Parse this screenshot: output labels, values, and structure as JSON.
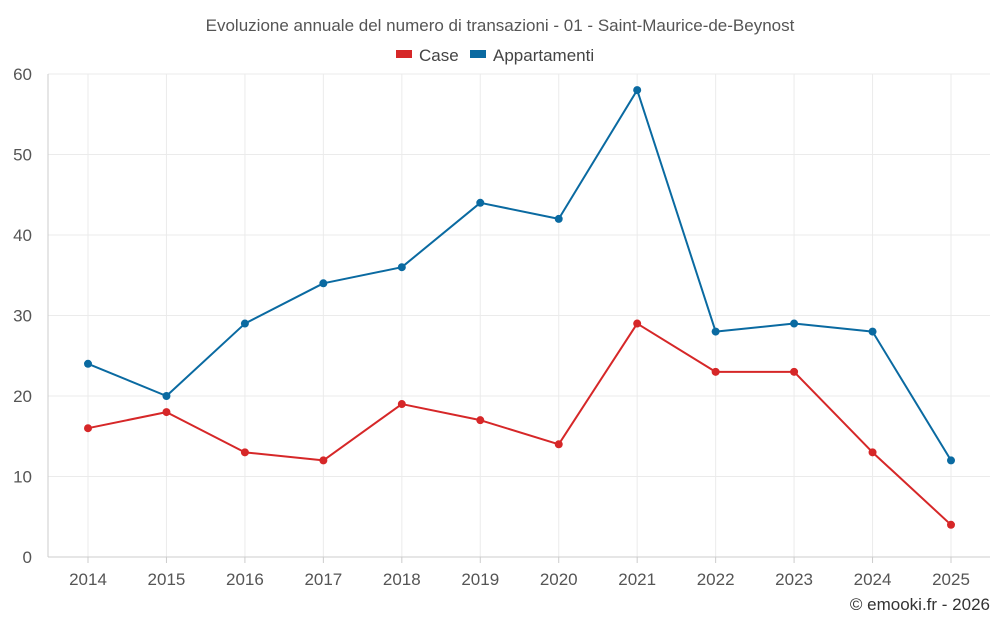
{
  "chart_data": {
    "type": "line",
    "title": "Evoluzione annuale del numero di transazioni - 01 - Saint-Maurice-de-Beynost",
    "categories": [
      "2014",
      "2015",
      "2016",
      "2017",
      "2018",
      "2019",
      "2020",
      "2021",
      "2022",
      "2023",
      "2024",
      "2025"
    ],
    "series": [
      {
        "name": "Case",
        "color": "#d62728",
        "values": [
          16,
          18,
          13,
          12,
          19,
          17,
          14,
          29,
          23,
          23,
          13,
          4
        ]
      },
      {
        "name": "Appartamenti",
        "color": "#0a6aa1",
        "values": [
          24,
          20,
          29,
          34,
          36,
          44,
          42,
          58,
          28,
          29,
          28,
          12
        ]
      }
    ],
    "ylim": [
      0,
      60
    ],
    "yticks": [
      0,
      10,
      20,
      30,
      40,
      50,
      60
    ],
    "xlabel": "",
    "ylabel": "",
    "grid": true,
    "legend_position": "top-center"
  },
  "credit": "© emooki.fr - 2026"
}
